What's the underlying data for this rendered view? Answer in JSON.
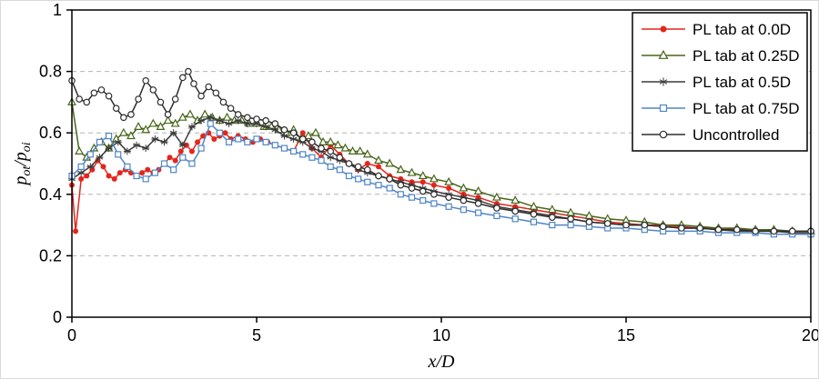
{
  "chart_data": {
    "type": "line",
    "title": "",
    "xlabel": "x/D",
    "ylabel": "p_ot/p_oi",
    "ylabel_parts": [
      {
        "t": "p",
        "sub": false
      },
      {
        "t": "ot",
        "sub": true
      },
      {
        "t": "/",
        "sub": false
      },
      {
        "t": "p",
        "sub": false
      },
      {
        "t": "oi",
        "sub": true
      }
    ],
    "xlim": [
      0,
      20
    ],
    "ylim": [
      0,
      1
    ],
    "xticks": [
      0,
      5,
      10,
      15,
      20
    ],
    "xtick_labels": [
      "0",
      "5",
      "10",
      "15",
      "20"
    ],
    "yticks": [
      0,
      0.2,
      0.4,
      0.6,
      0.8,
      1
    ],
    "ytick_labels": [
      "0",
      "0.2",
      "0.4",
      "0.6",
      "0.8",
      "1"
    ],
    "grid": "horizontal-dashed",
    "legend_position": "top-right",
    "colors": {
      "grid": "#b3b3b3",
      "axis": "#000000",
      "background": "#ffffff",
      "text": "#000000"
    },
    "series": [
      {
        "name": "PL tab at 0.0D",
        "color": "#e4251c",
        "marker": "filled-circle",
        "x": [
          0,
          0.1,
          0.25,
          0.4,
          0.55,
          0.7,
          0.85,
          1.0,
          1.15,
          1.3,
          1.45,
          1.6,
          1.75,
          1.9,
          2.05,
          2.2,
          2.35,
          2.5,
          2.65,
          2.8,
          2.95,
          3.1,
          3.25,
          3.4,
          3.55,
          3.7,
          3.85,
          4.0,
          4.15,
          4.3,
          4.5,
          4.7,
          4.9,
          5.1,
          5.3,
          5.5,
          5.75,
          6.0,
          6.25,
          6.5,
          6.75,
          7.0,
          7.25,
          7.5,
          7.75,
          8.0,
          8.3,
          8.6,
          8.9,
          9.2,
          9.5,
          9.8,
          10.2,
          10.6,
          11.0,
          11.5,
          12.0,
          12.5,
          13.0,
          13.5,
          14.0,
          14.5,
          15.0,
          15.5,
          16.0,
          16.5,
          17.0,
          17.5,
          18.0,
          18.5,
          19.0,
          19.5,
          20.0
        ],
        "y": [
          0.43,
          0.28,
          0.45,
          0.46,
          0.48,
          0.51,
          0.49,
          0.46,
          0.45,
          0.47,
          0.48,
          0.47,
          0.46,
          0.47,
          0.48,
          0.47,
          0.48,
          0.5,
          0.52,
          0.51,
          0.54,
          0.56,
          0.54,
          0.57,
          0.59,
          0.6,
          0.58,
          0.59,
          0.6,
          0.58,
          0.59,
          0.58,
          0.57,
          0.58,
          0.57,
          0.56,
          0.55,
          0.54,
          0.6,
          0.55,
          0.52,
          0.56,
          0.53,
          0.5,
          0.48,
          0.5,
          0.49,
          0.46,
          0.45,
          0.44,
          0.44,
          0.43,
          0.42,
          0.4,
          0.39,
          0.37,
          0.36,
          0.35,
          0.34,
          0.33,
          0.32,
          0.31,
          0.305,
          0.3,
          0.3,
          0.295,
          0.29,
          0.29,
          0.285,
          0.285,
          0.28,
          0.28,
          0.28
        ]
      },
      {
        "name": "PL tab at 0.25D",
        "color": "#47661a",
        "marker": "open-triangle",
        "x": [
          0,
          0.2,
          0.4,
          0.6,
          0.8,
          1.0,
          1.2,
          1.4,
          1.6,
          1.8,
          2.0,
          2.2,
          2.4,
          2.6,
          2.8,
          3.0,
          3.2,
          3.4,
          3.6,
          3.8,
          4.0,
          4.2,
          4.4,
          4.6,
          4.8,
          5.0,
          5.2,
          5.4,
          5.6,
          5.8,
          6.0,
          6.2,
          6.4,
          6.6,
          6.8,
          7.0,
          7.2,
          7.4,
          7.6,
          7.8,
          8.0,
          8.3,
          8.6,
          8.9,
          9.2,
          9.5,
          9.8,
          10.2,
          10.6,
          11.0,
          11.5,
          12.0,
          12.5,
          13.0,
          13.5,
          14.0,
          14.5,
          15.0,
          15.5,
          16.0,
          16.5,
          17.0,
          17.5,
          18.0,
          18.5,
          19.0,
          19.5,
          20.0
        ],
        "y": [
          0.7,
          0.54,
          0.52,
          0.55,
          0.57,
          0.55,
          0.58,
          0.6,
          0.59,
          0.62,
          0.61,
          0.63,
          0.62,
          0.64,
          0.63,
          0.65,
          0.66,
          0.64,
          0.66,
          0.65,
          0.64,
          0.65,
          0.64,
          0.64,
          0.63,
          0.63,
          0.62,
          0.62,
          0.61,
          0.6,
          0.61,
          0.58,
          0.59,
          0.6,
          0.57,
          0.57,
          0.56,
          0.55,
          0.54,
          0.54,
          0.53,
          0.51,
          0.5,
          0.48,
          0.47,
          0.46,
          0.45,
          0.44,
          0.42,
          0.41,
          0.39,
          0.38,
          0.36,
          0.35,
          0.34,
          0.33,
          0.32,
          0.315,
          0.31,
          0.3,
          0.3,
          0.295,
          0.29,
          0.29,
          0.285,
          0.285,
          0.28,
          0.28
        ]
      },
      {
        "name": "PL tab at 0.5D",
        "color": "#3b3b3b",
        "marker": "asterisk",
        "x": [
          0,
          0.25,
          0.5,
          0.75,
          1.0,
          1.25,
          1.5,
          1.75,
          2.0,
          2.25,
          2.5,
          2.75,
          3.0,
          3.25,
          3.5,
          3.75,
          4.0,
          4.25,
          4.5,
          4.75,
          5.0,
          5.25,
          5.5,
          5.75,
          6.0,
          6.25,
          6.5,
          6.75,
          7.0,
          7.25,
          7.5,
          7.75,
          8.0,
          8.3,
          8.6,
          8.9,
          9.2,
          9.5,
          9.8,
          10.2,
          10.6,
          11.0,
          11.5,
          12.0,
          12.5,
          13.0,
          13.5,
          14.0,
          14.5,
          15.0,
          15.5,
          16.0,
          16.5,
          17.0,
          17.5,
          18.0,
          18.5,
          19.0,
          19.5,
          20.0
        ],
        "y": [
          0.45,
          0.47,
          0.49,
          0.52,
          0.55,
          0.57,
          0.54,
          0.56,
          0.55,
          0.58,
          0.57,
          0.6,
          0.56,
          0.62,
          0.64,
          0.65,
          0.64,
          0.63,
          0.64,
          0.63,
          0.63,
          0.62,
          0.61,
          0.59,
          0.58,
          0.57,
          0.55,
          0.54,
          0.52,
          0.51,
          0.5,
          0.48,
          0.47,
          0.46,
          0.45,
          0.44,
          0.43,
          0.42,
          0.41,
          0.4,
          0.39,
          0.38,
          0.36,
          0.35,
          0.34,
          0.33,
          0.32,
          0.31,
          0.305,
          0.3,
          0.3,
          0.295,
          0.29,
          0.29,
          0.285,
          0.28,
          0.28,
          0.28,
          0.275,
          0.275
        ]
      },
      {
        "name": "PL tab at 0.75D",
        "color": "#4f86c6",
        "marker": "open-square",
        "x": [
          0,
          0.25,
          0.5,
          0.75,
          1.0,
          1.25,
          1.5,
          1.75,
          2.0,
          2.25,
          2.5,
          2.75,
          3.0,
          3.25,
          3.5,
          3.75,
          4.0,
          4.25,
          4.5,
          4.75,
          5.0,
          5.25,
          5.5,
          5.75,
          6.0,
          6.25,
          6.5,
          6.75,
          7.0,
          7.25,
          7.5,
          7.75,
          8.0,
          8.3,
          8.6,
          8.9,
          9.2,
          9.5,
          9.8,
          10.2,
          10.6,
          11.0,
          11.5,
          12.0,
          12.5,
          13.0,
          13.5,
          14.0,
          14.5,
          15.0,
          15.5,
          16.0,
          16.5,
          17.0,
          17.5,
          18.0,
          18.5,
          19.0,
          19.5,
          20.0
        ],
        "y": [
          0.46,
          0.49,
          0.53,
          0.57,
          0.59,
          0.53,
          0.49,
          0.46,
          0.45,
          0.47,
          0.5,
          0.48,
          0.52,
          0.5,
          0.55,
          0.63,
          0.6,
          0.57,
          0.58,
          0.57,
          0.58,
          0.57,
          0.56,
          0.55,
          0.54,
          0.53,
          0.52,
          0.51,
          0.49,
          0.48,
          0.46,
          0.45,
          0.44,
          0.43,
          0.42,
          0.4,
          0.39,
          0.38,
          0.37,
          0.36,
          0.35,
          0.34,
          0.33,
          0.32,
          0.31,
          0.3,
          0.3,
          0.295,
          0.29,
          0.29,
          0.285,
          0.28,
          0.28,
          0.28,
          0.275,
          0.275,
          0.275,
          0.27,
          0.27,
          0.27
        ]
      },
      {
        "name": "Uncontrolled",
        "color": "#2e2e2e",
        "marker": "open-circle",
        "x": [
          0,
          0.2,
          0.4,
          0.6,
          0.8,
          1.0,
          1.2,
          1.4,
          1.6,
          1.8,
          2.0,
          2.2,
          2.4,
          2.6,
          2.8,
          3.0,
          3.15,
          3.3,
          3.5,
          3.7,
          3.9,
          4.1,
          4.3,
          4.5,
          4.75,
          5.0,
          5.25,
          5.5,
          5.75,
          6.0,
          6.25,
          6.5,
          6.75,
          7.0,
          7.25,
          7.5,
          7.75,
          8.0,
          8.3,
          8.6,
          8.9,
          9.2,
          9.5,
          9.8,
          10.2,
          10.6,
          11.0,
          11.5,
          12.0,
          12.5,
          13.0,
          13.5,
          14.0,
          14.5,
          15.0,
          15.5,
          16.0,
          16.5,
          17.0,
          17.5,
          18.0,
          18.5,
          19.0,
          19.5,
          20.0
        ],
        "y": [
          0.77,
          0.71,
          0.7,
          0.73,
          0.74,
          0.72,
          0.68,
          0.65,
          0.66,
          0.71,
          0.77,
          0.74,
          0.7,
          0.66,
          0.71,
          0.78,
          0.8,
          0.76,
          0.72,
          0.75,
          0.73,
          0.7,
          0.68,
          0.66,
          0.65,
          0.645,
          0.64,
          0.63,
          0.61,
          0.6,
          0.58,
          0.57,
          0.55,
          0.54,
          0.52,
          0.5,
          0.49,
          0.48,
          0.46,
          0.45,
          0.43,
          0.42,
          0.41,
          0.4,
          0.39,
          0.38,
          0.37,
          0.355,
          0.345,
          0.335,
          0.325,
          0.32,
          0.31,
          0.305,
          0.3,
          0.3,
          0.295,
          0.29,
          0.29,
          0.285,
          0.285,
          0.28,
          0.28,
          0.28,
          0.28
        ]
      }
    ]
  }
}
